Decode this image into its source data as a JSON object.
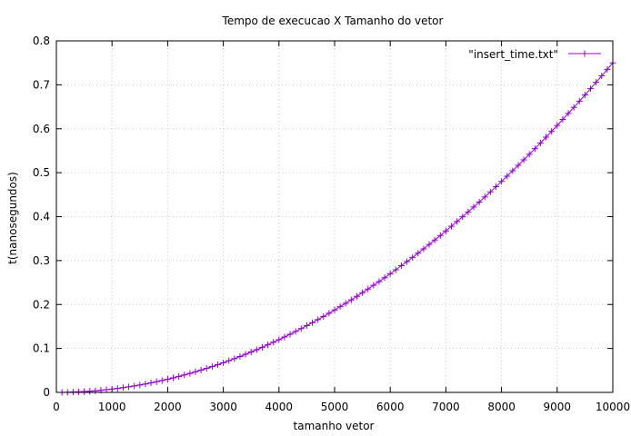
{
  "chart_data": {
    "type": "line",
    "title": "Tempo de execucao X Tamanho do vetor",
    "xlabel": "tamanho vetor",
    "ylabel": "t(nanosegundos)",
    "xlim": [
      0,
      10000
    ],
    "ylim": [
      0,
      0.8
    ],
    "xticks": [
      "0",
      "1000",
      "2000",
      "3000",
      "4000",
      "5000",
      "6000",
      "7000",
      "8000",
      "9000",
      "10000"
    ],
    "yticks": [
      "0",
      "0.1",
      "0.2",
      "0.3",
      "0.4",
      "0.5",
      "0.6",
      "0.7",
      "0.8"
    ],
    "grid": true,
    "legend_position": "top-right",
    "series": [
      {
        "name": "\"insert_time.txt\"",
        "color": "#9400d3",
        "marker": "plus",
        "x": [
          100,
          200,
          300,
          400,
          500,
          600,
          700,
          800,
          900,
          1000,
          1100,
          1200,
          1300,
          1400,
          1500,
          1600,
          1700,
          1800,
          1900,
          2000,
          2100,
          2200,
          2300,
          2400,
          2500,
          2600,
          2700,
          2800,
          2900,
          3000,
          3100,
          3200,
          3300,
          3400,
          3500,
          3600,
          3700,
          3800,
          3900,
          4000,
          4100,
          4200,
          4300,
          4400,
          4500,
          4600,
          4700,
          4800,
          4900,
          5000,
          5100,
          5200,
          5300,
          5400,
          5500,
          5600,
          5700,
          5800,
          5900,
          6000,
          6100,
          6200,
          6300,
          6400,
          6500,
          6600,
          6700,
          6800,
          6900,
          7000,
          7100,
          7200,
          7300,
          7400,
          7500,
          7600,
          7700,
          7800,
          7900,
          8000,
          8100,
          8200,
          8300,
          8400,
          8500,
          8600,
          8700,
          8800,
          8900,
          9000,
          9100,
          9200,
          9300,
          9400,
          9500,
          9600,
          9700,
          9800,
          9900,
          10000
        ],
        "y": [
          0.0001,
          0.0003,
          0.0007,
          0.0012,
          0.0019,
          0.0027,
          0.0037,
          0.0048,
          0.0061,
          0.0075,
          0.0091,
          0.0108,
          0.0127,
          0.0147,
          0.0169,
          0.0192,
          0.0217,
          0.0243,
          0.0271,
          0.03,
          0.0331,
          0.0363,
          0.0397,
          0.0432,
          0.0469,
          0.0507,
          0.0547,
          0.0588,
          0.0631,
          0.0675,
          0.0721,
          0.0768,
          0.0817,
          0.0867,
          0.0919,
          0.0972,
          0.1027,
          0.1083,
          0.1141,
          0.12,
          0.1261,
          0.1323,
          0.1387,
          0.1452,
          0.1519,
          0.1587,
          0.1657,
          0.1728,
          0.1801,
          0.1875,
          0.1951,
          0.2028,
          0.2107,
          0.2187,
          0.2269,
          0.2352,
          0.2437,
          0.2523,
          0.2611,
          0.27,
          0.2791,
          0.2883,
          0.2977,
          0.3072,
          0.3169,
          0.3267,
          0.3367,
          0.3468,
          0.3571,
          0.3675,
          0.3781,
          0.3888,
          0.3997,
          0.4107,
          0.4219,
          0.4332,
          0.4447,
          0.4563,
          0.4681,
          0.48,
          0.4921,
          0.5043,
          0.5167,
          0.5292,
          0.5419,
          0.5547,
          0.5677,
          0.5808,
          0.5941,
          0.6075,
          0.6211,
          0.6348,
          0.6487,
          0.6627,
          0.6769,
          0.6912,
          0.7057,
          0.7203,
          0.7351,
          0.75
        ]
      }
    ]
  }
}
